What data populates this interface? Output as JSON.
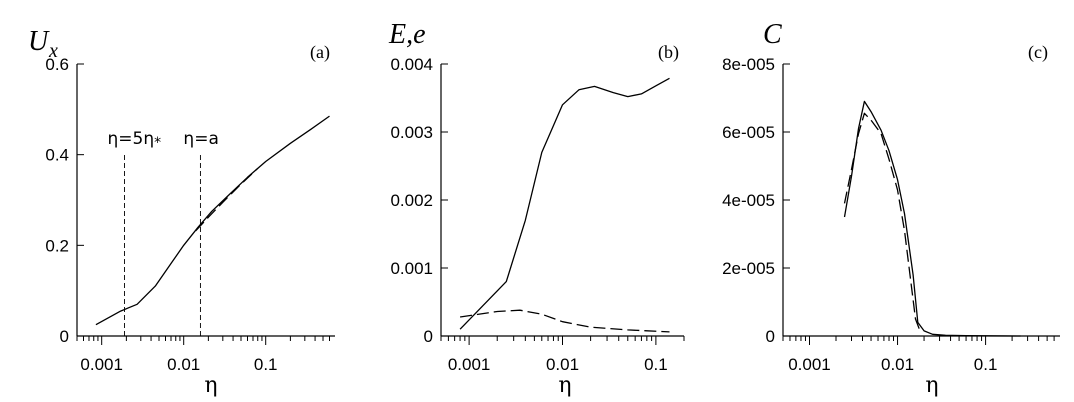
{
  "chart_data": [
    {
      "type": "line",
      "panel_label": "(a)",
      "ylabel": "U",
      "ylabel_sub": "x",
      "xlabel": "η",
      "xscale": "log",
      "xlim": [
        0.0005,
        0.7
      ],
      "ylim": [
        0,
        0.6
      ],
      "yticks": [
        0,
        0.2,
        0.4,
        0.6
      ],
      "ytick_labels": [
        "0",
        "0.2",
        "0.4",
        "0.6"
      ],
      "xticks": [
        0.001,
        0.01,
        0.1
      ],
      "xtick_labels": [
        "0.001",
        "0.01",
        "0.1"
      ],
      "grid": false,
      "series": [
        {
          "style": "solid",
          "x": [
            0.00085,
            0.0017,
            0.0027,
            0.0045,
            0.007,
            0.01,
            0.015,
            0.022,
            0.035,
            0.06,
            0.1,
            0.2,
            0.35,
            0.6
          ],
          "y": [
            0.025,
            0.055,
            0.07,
            0.11,
            0.16,
            0.2,
            0.24,
            0.275,
            0.31,
            0.35,
            0.385,
            0.425,
            0.455,
            0.485
          ]
        },
        {
          "style": "dashed",
          "x": [
            0.014,
            0.02,
            0.03,
            0.05,
            0.08
          ],
          "y": [
            0.232,
            0.262,
            0.295,
            0.335,
            0.37
          ]
        }
      ],
      "vlines": [
        {
          "x": 0.0019,
          "label": "η=5η",
          "label_sub": "*"
        },
        {
          "x": 0.016,
          "label": "η=a",
          "label_sub": ""
        }
      ]
    },
    {
      "type": "line",
      "panel_label": "(b)",
      "ylabel": "E,e",
      "ylabel_sub": "",
      "xlabel": "η",
      "xscale": "log",
      "xlim": [
        0.0005,
        0.2
      ],
      "ylim": [
        0,
        0.004
      ],
      "yticks": [
        0,
        0.001,
        0.002,
        0.003,
        0.004
      ],
      "ytick_labels": [
        "0",
        "0.001",
        "0.002",
        "0.003",
        "0.004"
      ],
      "xticks": [
        0.001,
        0.01,
        0.1
      ],
      "xtick_labels": [
        "0.001",
        "0.01",
        "0.1"
      ],
      "grid": false,
      "series": [
        {
          "style": "solid",
          "x": [
            0.0008,
            0.0025,
            0.004,
            0.006,
            0.01,
            0.015,
            0.022,
            0.035,
            0.05,
            0.07,
            0.1,
            0.14
          ],
          "y": [
            0.0001,
            0.0008,
            0.0017,
            0.0027,
            0.0034,
            0.00362,
            0.00367,
            0.00358,
            0.00352,
            0.00356,
            0.00368,
            0.00379
          ]
        },
        {
          "style": "dashed",
          "x": [
            0.0008,
            0.002,
            0.0035,
            0.006,
            0.01,
            0.02,
            0.05,
            0.14
          ],
          "y": [
            0.00028,
            0.00036,
            0.00038,
            0.00032,
            0.00021,
            0.00013,
            9e-05,
            6e-05
          ]
        }
      ],
      "vlines": []
    },
    {
      "type": "line",
      "panel_label": "(c)",
      "ylabel": "C",
      "ylabel_sub": "",
      "xlabel": "η",
      "xscale": "log",
      "xlim": [
        0.0005,
        0.7
      ],
      "ylim": [
        0,
        8e-05
      ],
      "yticks": [
        0,
        2e-05,
        4e-05,
        6e-05,
        8e-05
      ],
      "ytick_labels": [
        "0",
        "2e-005",
        "4e-005",
        "6e-005",
        "8e-005"
      ],
      "xticks": [
        0.001,
        0.01,
        0.1
      ],
      "xtick_labels": [
        "0.001",
        "0.01",
        "0.1"
      ],
      "grid": false,
      "series": [
        {
          "style": "solid",
          "x": [
            0.0025,
            0.003,
            0.0036,
            0.0042,
            0.005,
            0.0065,
            0.008,
            0.01,
            0.012,
            0.015,
            0.017,
            0.02,
            0.025,
            0.035,
            0.06,
            0.1,
            0.25
          ],
          "y": [
            3.5e-05,
            4.7e-05,
            6.1e-05,
            6.9e-05,
            6.6e-05,
            6.05e-05,
            5.45e-05,
            4.6e-05,
            3.6e-05,
            1.8e-05,
            4e-06,
            1.5e-06,
            5e-07,
            2e-07,
            1e-07,
            5e-08,
            0.0
          ]
        },
        {
          "style": "dashed",
          "x": [
            0.0025,
            0.003,
            0.0036,
            0.0042,
            0.005,
            0.0065,
            0.008,
            0.01,
            0.012,
            0.014,
            0.016,
            0.018
          ],
          "y": [
            3.9e-05,
            4.9e-05,
            5.95e-05,
            6.55e-05,
            6.35e-05,
            5.95e-05,
            5.2e-05,
            4.3e-05,
            3.1e-05,
            1.7e-05,
            5e-06,
            1.5e-06
          ]
        }
      ],
      "vlines": []
    }
  ]
}
